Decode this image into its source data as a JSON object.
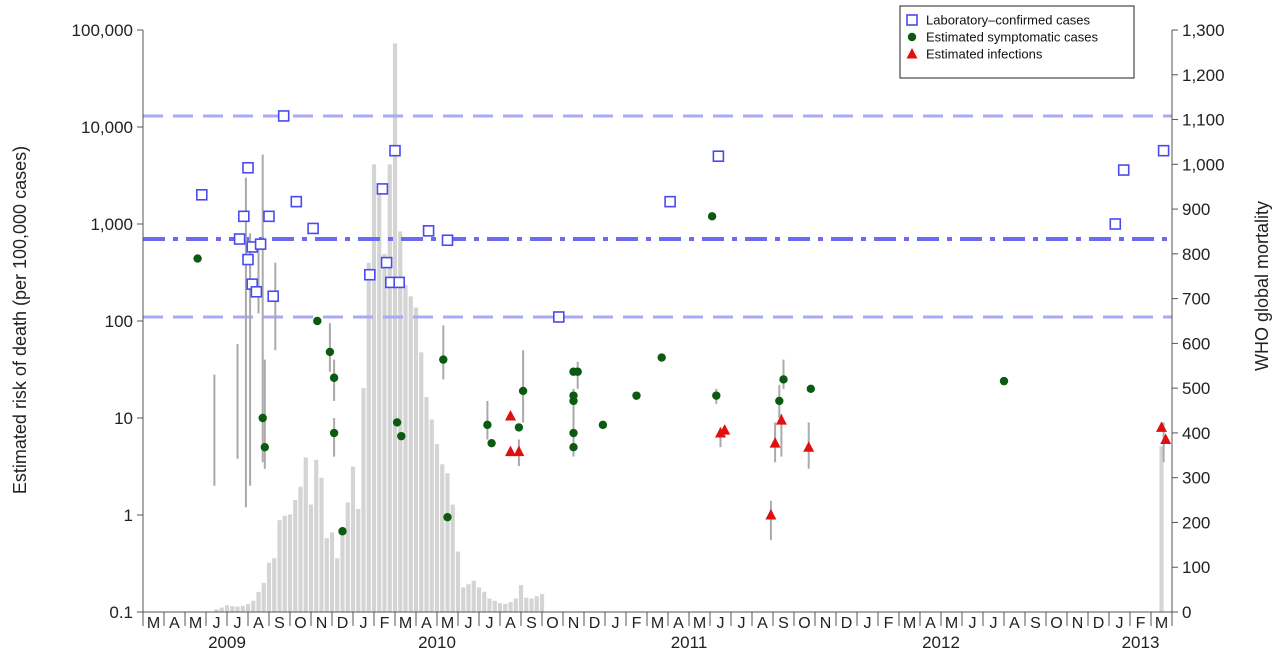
{
  "chart_data": {
    "type": "scatter",
    "ylabel": "Estimated risk of death (per 100,000 cases)",
    "y2label": "WHO global mortality",
    "yscale": "log",
    "ylim": [
      0.1,
      100000
    ],
    "y_ticks": [
      "0.1",
      "1",
      "10",
      "100",
      "1,000",
      "10,000",
      "100,000"
    ],
    "y2lim": [
      0,
      1300
    ],
    "y2_ticks": [
      "0",
      "100",
      "200",
      "300",
      "400",
      "500",
      "600",
      "700",
      "800",
      "900",
      "1,000",
      "1,100",
      "1,200",
      "1,300"
    ],
    "months": [
      "M",
      "A",
      "M",
      "J",
      "J",
      "A",
      "S",
      "O",
      "N",
      "D",
      "J",
      "F",
      "M",
      "A",
      "M",
      "J",
      "J",
      "A",
      "S",
      "O",
      "N",
      "D",
      "J",
      "F",
      "M",
      "A",
      "M",
      "J",
      "J",
      "A",
      "S",
      "O",
      "N",
      "D",
      "J",
      "F",
      "M",
      "A",
      "M",
      "J",
      "J",
      "A",
      "S",
      "O",
      "N",
      "D",
      "J",
      "F",
      "M"
    ],
    "years": [
      {
        "label": "2009",
        "month_index": 3.5
      },
      {
        "label": "2010",
        "month_index": 13.5
      },
      {
        "label": "2011",
        "month_index": 25.5
      },
      {
        "label": "2012",
        "month_index": 37.5
      },
      {
        "label": "2013",
        "month_index": 47
      }
    ],
    "reference_lines": [
      {
        "name": "upper",
        "y": 13000,
        "style": "dashed"
      },
      {
        "name": "median",
        "y": 700,
        "style": "dashdot"
      },
      {
        "name": "lower",
        "y": 110,
        "style": "dashed"
      }
    ],
    "legend": [
      {
        "label": "Laboratory–confirmed cases",
        "marker": "square",
        "color": "#4a4af0"
      },
      {
        "label": "Estimated symptomatic cases",
        "marker": "circle",
        "color": "#0a5a12"
      },
      {
        "label": "Estimated infections",
        "marker": "triangle",
        "color": "#e01010"
      }
    ],
    "series": [
      {
        "name": "Laboratory–confirmed cases",
        "marker": "square",
        "points": [
          {
            "x": 2.3,
            "y": 2000
          },
          {
            "x": 4.1,
            "y": 700
          },
          {
            "x": 4.3,
            "y": 1200
          },
          {
            "x": 4.5,
            "y": 3800
          },
          {
            "x": 4.5,
            "y": 430
          },
          {
            "x": 4.7,
            "y": 580
          },
          {
            "x": 4.7,
            "y": 240
          },
          {
            "x": 4.9,
            "y": 200
          },
          {
            "x": 5.1,
            "y": 620
          },
          {
            "x": 5.5,
            "y": 1200
          },
          {
            "x": 5.7,
            "y": 180
          },
          {
            "x": 6.2,
            "y": 13000
          },
          {
            "x": 6.8,
            "y": 1700
          },
          {
            "x": 7.6,
            "y": 900
          },
          {
            "x": 10.3,
            "y": 300
          },
          {
            "x": 10.9,
            "y": 2300
          },
          {
            "x": 11.1,
            "y": 400
          },
          {
            "x": 11.3,
            "y": 250
          },
          {
            "x": 11.5,
            "y": 5700
          },
          {
            "x": 11.7,
            "y": 250
          },
          {
            "x": 13.1,
            "y": 850
          },
          {
            "x": 14.0,
            "y": 680
          },
          {
            "x": 19.3,
            "y": 110
          },
          {
            "x": 24.6,
            "y": 1700
          },
          {
            "x": 26.9,
            "y": 5000
          },
          {
            "x": 45.8,
            "y": 1000
          },
          {
            "x": 46.2,
            "y": 3600
          },
          {
            "x": 48.1,
            "y": 5700
          }
        ]
      },
      {
        "name": "Estimated symptomatic cases",
        "marker": "circle",
        "points": [
          {
            "x": 2.1,
            "y": 440
          },
          {
            "x": 5.2,
            "y": 10
          },
          {
            "x": 5.3,
            "y": 5
          },
          {
            "x": 7.8,
            "y": 100
          },
          {
            "x": 8.4,
            "y": 48
          },
          {
            "x": 8.6,
            "y": 26
          },
          {
            "x": 8.6,
            "y": 7
          },
          {
            "x": 9.0,
            "y": 0.68
          },
          {
            "x": 11.6,
            "y": 9
          },
          {
            "x": 11.8,
            "y": 6.5
          },
          {
            "x": 13.8,
            "y": 40
          },
          {
            "x": 14.0,
            "y": 0.95
          },
          {
            "x": 15.9,
            "y": 8.5
          },
          {
            "x": 16.1,
            "y": 5.5
          },
          {
            "x": 17.4,
            "y": 8
          },
          {
            "x": 17.6,
            "y": 19
          },
          {
            "x": 20.0,
            "y": 30
          },
          {
            "x": 20.0,
            "y": 17
          },
          {
            "x": 20.0,
            "y": 15
          },
          {
            "x": 20.0,
            "y": 7
          },
          {
            "x": 20.0,
            "y": 5
          },
          {
            "x": 20.2,
            "y": 30
          },
          {
            "x": 21.4,
            "y": 8.5
          },
          {
            "x": 23.0,
            "y": 17
          },
          {
            "x": 24.2,
            "y": 42
          },
          {
            "x": 26.6,
            "y": 1200
          },
          {
            "x": 26.8,
            "y": 17
          },
          {
            "x": 29.8,
            "y": 15
          },
          {
            "x": 30.0,
            "y": 25
          },
          {
            "x": 31.3,
            "y": 20
          },
          {
            "x": 40.5,
            "y": 24
          }
        ]
      },
      {
        "name": "Estimated infections",
        "marker": "triangle",
        "points": [
          {
            "x": 17.0,
            "y": 10.5
          },
          {
            "x": 17.0,
            "y": 4.5
          },
          {
            "x": 17.4,
            "y": 4.5
          },
          {
            "x": 27.0,
            "y": 7
          },
          {
            "x": 27.2,
            "y": 7.5
          },
          {
            "x": 29.4,
            "y": 1
          },
          {
            "x": 29.6,
            "y": 5.5
          },
          {
            "x": 29.9,
            "y": 9.5
          },
          {
            "x": 31.2,
            "y": 5
          },
          {
            "x": 48.0,
            "y": 8
          },
          {
            "x": 48.2,
            "y": 6
          }
        ]
      }
    ],
    "error_bars": [
      {
        "x": 2.9,
        "lo": 2,
        "hi": 28
      },
      {
        "x": 4.0,
        "lo": 3.8,
        "hi": 58
      },
      {
        "x": 4.4,
        "lo": 1.2,
        "hi": 3000
      },
      {
        "x": 4.6,
        "lo": 2,
        "hi": 800
      },
      {
        "x": 5.0,
        "lo": 120,
        "hi": 600
      },
      {
        "x": 5.2,
        "lo": 3.5,
        "hi": 5200
      },
      {
        "x": 5.3,
        "lo": 3,
        "hi": 40
      },
      {
        "x": 5.8,
        "lo": 50,
        "hi": 400
      },
      {
        "x": 8.4,
        "lo": 30,
        "hi": 95
      },
      {
        "x": 8.6,
        "lo": 15,
        "hi": 40
      },
      {
        "x": 8.6,
        "lo": 4,
        "hi": 10
      },
      {
        "x": 13.8,
        "lo": 25,
        "hi": 90
      },
      {
        "x": 15.9,
        "lo": 6,
        "hi": 15
      },
      {
        "x": 17.4,
        "lo": 3.2,
        "hi": 6
      },
      {
        "x": 17.6,
        "lo": 9,
        "hi": 50
      },
      {
        "x": 20.0,
        "lo": 4,
        "hi": 20
      },
      {
        "x": 20.2,
        "lo": 20,
        "hi": 38
      },
      {
        "x": 26.8,
        "lo": 14,
        "hi": 20
      },
      {
        "x": 27.0,
        "lo": 5,
        "hi": 8
      },
      {
        "x": 29.4,
        "lo": 0.55,
        "hi": 1.4
      },
      {
        "x": 29.6,
        "lo": 3.5,
        "hi": 9
      },
      {
        "x": 29.8,
        "lo": 10,
        "hi": 22
      },
      {
        "x": 29.9,
        "lo": 4,
        "hi": 11
      },
      {
        "x": 30.0,
        "lo": 20,
        "hi": 40
      },
      {
        "x": 31.2,
        "lo": 3,
        "hi": 9
      },
      {
        "x": 48.1,
        "lo": 3.5,
        "hi": 9
      }
    ],
    "bars": [
      {
        "x": 1.0,
        "y2": 0
      },
      {
        "x": 1.5,
        "y2": 0
      },
      {
        "x": 2.0,
        "y2": 0
      },
      {
        "x": 2.5,
        "y2": 0
      },
      {
        "x": 3.0,
        "y2": 6
      },
      {
        "x": 3.25,
        "y2": 10
      },
      {
        "x": 3.5,
        "y2": 15
      },
      {
        "x": 3.75,
        "y2": 13
      },
      {
        "x": 4.0,
        "y2": 12
      },
      {
        "x": 4.25,
        "y2": 14
      },
      {
        "x": 4.5,
        "y2": 18
      },
      {
        "x": 4.75,
        "y2": 25
      },
      {
        "x": 5.0,
        "y2": 45
      },
      {
        "x": 5.25,
        "y2": 65
      },
      {
        "x": 5.5,
        "y2": 110
      },
      {
        "x": 5.75,
        "y2": 120
      },
      {
        "x": 6.0,
        "y2": 205
      },
      {
        "x": 6.25,
        "y2": 215
      },
      {
        "x": 6.5,
        "y2": 218
      },
      {
        "x": 6.75,
        "y2": 250
      },
      {
        "x": 7.0,
        "y2": 280
      },
      {
        "x": 7.25,
        "y2": 345
      },
      {
        "x": 7.5,
        "y2": 240
      },
      {
        "x": 7.75,
        "y2": 340
      },
      {
        "x": 8.0,
        "y2": 300
      },
      {
        "x": 8.25,
        "y2": 165
      },
      {
        "x": 8.5,
        "y2": 178
      },
      {
        "x": 8.75,
        "y2": 120
      },
      {
        "x": 9.0,
        "y2": 185
      },
      {
        "x": 9.25,
        "y2": 245
      },
      {
        "x": 9.5,
        "y2": 325
      },
      {
        "x": 9.75,
        "y2": 230
      },
      {
        "x": 10.0,
        "y2": 500
      },
      {
        "x": 10.25,
        "y2": 780
      },
      {
        "x": 10.5,
        "y2": 1000
      },
      {
        "x": 10.75,
        "y2": 950
      },
      {
        "x": 11.0,
        "y2": 800
      },
      {
        "x": 11.25,
        "y2": 1000
      },
      {
        "x": 11.5,
        "y2": 1270
      },
      {
        "x": 11.75,
        "y2": 850
      },
      {
        "x": 12.0,
        "y2": 730
      },
      {
        "x": 12.25,
        "y2": 705
      },
      {
        "x": 12.5,
        "y2": 680
      },
      {
        "x": 12.75,
        "y2": 580
      },
      {
        "x": 13.0,
        "y2": 480
      },
      {
        "x": 13.25,
        "y2": 430
      },
      {
        "x": 13.5,
        "y2": 375
      },
      {
        "x": 13.75,
        "y2": 330
      },
      {
        "x": 14.0,
        "y2": 310
      },
      {
        "x": 14.25,
        "y2": 240
      },
      {
        "x": 14.5,
        "y2": 135
      },
      {
        "x": 14.75,
        "y2": 55
      },
      {
        "x": 15.0,
        "y2": 62
      },
      {
        "x": 15.25,
        "y2": 70
      },
      {
        "x": 15.5,
        "y2": 55
      },
      {
        "x": 15.75,
        "y2": 45
      },
      {
        "x": 16.0,
        "y2": 30
      },
      {
        "x": 16.25,
        "y2": 25
      },
      {
        "x": 16.5,
        "y2": 20
      },
      {
        "x": 16.75,
        "y2": 18
      },
      {
        "x": 17.0,
        "y2": 22
      },
      {
        "x": 17.25,
        "y2": 30
      },
      {
        "x": 17.5,
        "y2": 60
      },
      {
        "x": 17.75,
        "y2": 32
      },
      {
        "x": 18.0,
        "y2": 30
      },
      {
        "x": 18.25,
        "y2": 35
      },
      {
        "x": 18.5,
        "y2": 40
      },
      {
        "x": 48.0,
        "y2": 370
      }
    ]
  }
}
